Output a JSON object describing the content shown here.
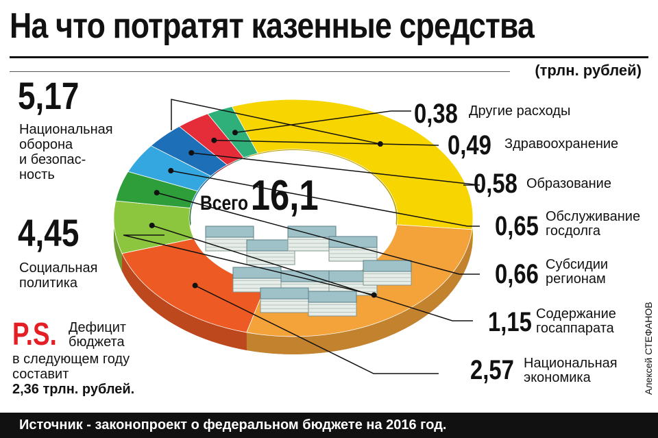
{
  "title": "На что потратят казенные средства",
  "unit": "(трлн. рублей)",
  "chart_data": {
    "type": "pie",
    "subtype": "donut",
    "title": "На что потратят казенные средства",
    "unit": "(трлн. рублей)",
    "total_label": "Всего",
    "total_value": "16,1",
    "slices": [
      {
        "value": 5.17,
        "value_text": "5,17",
        "label": "Национальная оборона и безопасность",
        "label_lines": [
          "Национальная",
          "оборона",
          "и безопас-",
          "ность"
        ],
        "color": "#f7d500"
      },
      {
        "value": 4.45,
        "value_text": "4,45",
        "label": "Социальная политика",
        "label_lines": [
          "Социальная",
          "политика"
        ],
        "color": "#f4a23a"
      },
      {
        "value": 2.57,
        "value_text": "2,57",
        "label": "Национальная экономика",
        "label_lines": [
          "Национальная",
          "экономика"
        ],
        "color": "#ee5a24"
      },
      {
        "value": 1.15,
        "value_text": "1,15",
        "label": "Содержание госаппарата",
        "label_lines": [
          "Содержание",
          "госаппарата"
        ],
        "color": "#8cc63f"
      },
      {
        "value": 0.66,
        "value_text": "0,66",
        "label": "Субсидии регионам",
        "label_lines": [
          "Субсидии",
          "регионам"
        ],
        "color": "#2e9e3a"
      },
      {
        "value": 0.65,
        "value_text": "0,65",
        "label": "Обслуживание госдолга",
        "label_lines": [
          "Обслуживание",
          "госдолга"
        ],
        "color": "#35a7e0"
      },
      {
        "value": 0.58,
        "value_text": "0,58",
        "label": "Образование",
        "label_lines": [
          "Образование"
        ],
        "color": "#1d6fb8"
      },
      {
        "value": 0.49,
        "value_text": "0,49",
        "label": "Здравоохранение",
        "label_lines": [
          "Здравоохранение"
        ],
        "color": "#e52d3a"
      },
      {
        "value": 0.38,
        "value_text": "0,38",
        "label": "Другие расходы",
        "label_lines": [
          "Другие расходы"
        ],
        "color": "#2fb07a"
      }
    ]
  },
  "ps": {
    "mark": "P.S.",
    "text1": "Дефицит бюджета",
    "line2": "в следующем году",
    "line3": "составит",
    "line4": "2,36 трлн. рублей."
  },
  "author": "Алексей СТЕФАНОВ",
  "source": "Источник - законопроект о федеральном бюджете на 2016 год."
}
